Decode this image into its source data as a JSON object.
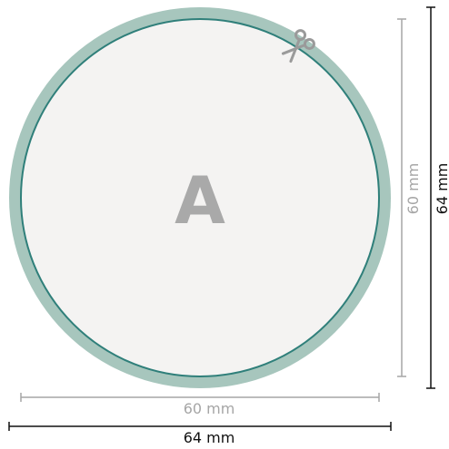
{
  "circle": {
    "center_label": "A",
    "inner_diameter_label": "60 mm",
    "outer_diameter_label": "64 mm"
  },
  "icons": {
    "cut": "scissors-icon"
  },
  "colors": {
    "bleed_ring": "#a7c6bd",
    "cut_line": "#2f7f7a",
    "inner_fill": "#f4f3f2",
    "label_a": "#a9a9a9",
    "inner_dimension": "#a6a6a6",
    "outer_dimension": "#111111",
    "scissors": "#9a9a9a"
  }
}
